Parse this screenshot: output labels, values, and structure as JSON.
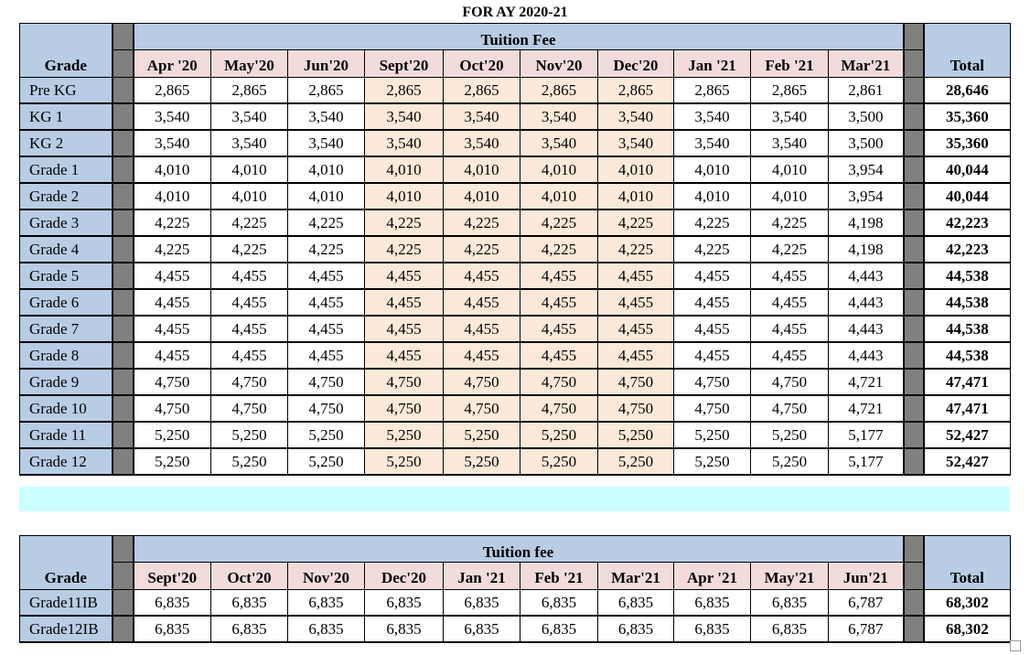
{
  "title": "FOR AY 2020-21",
  "colors": {
    "header_blue": "#b8cce4",
    "month_pink": "#f2dcdb",
    "highlight_peach": "#fde9d9",
    "separator_grey": "#808080",
    "band_cyan": "#ccffff"
  },
  "table1": {
    "grade_header": "Grade",
    "group_header": "Tuition Fee",
    "total_header": "Total",
    "months": [
      "Apr '20",
      "May'20",
      "Jun'20",
      "Sept'20",
      "Oct'20",
      "Nov'20",
      "Dec'20",
      "Jan '21",
      "Feb '21",
      "Mar'21"
    ],
    "highlighted_months": [
      "Sept'20",
      "Oct'20",
      "Nov'20",
      "Dec'20"
    ],
    "rows": [
      {
        "grade": "Pre KG",
        "values": [
          "2,865",
          "2,865",
          "2,865",
          "2,865",
          "2,865",
          "2,865",
          "2,865",
          "2,865",
          "2,865",
          "2,861"
        ],
        "total": "28,646"
      },
      {
        "grade": "KG 1",
        "values": [
          "3,540",
          "3,540",
          "3,540",
          "3,540",
          "3,540",
          "3,540",
          "3,540",
          "3,540",
          "3,540",
          "3,500"
        ],
        "total": "35,360"
      },
      {
        "grade": "KG 2",
        "values": [
          "3,540",
          "3,540",
          "3,540",
          "3,540",
          "3,540",
          "3,540",
          "3,540",
          "3,540",
          "3,540",
          "3,500"
        ],
        "total": "35,360"
      },
      {
        "grade": "Grade 1",
        "values": [
          "4,010",
          "4,010",
          "4,010",
          "4,010",
          "4,010",
          "4,010",
          "4,010",
          "4,010",
          "4,010",
          "3,954"
        ],
        "total": "40,044"
      },
      {
        "grade": "Grade 2",
        "values": [
          "4,010",
          "4,010",
          "4,010",
          "4,010",
          "4,010",
          "4,010",
          "4,010",
          "4,010",
          "4,010",
          "3,954"
        ],
        "total": "40,044"
      },
      {
        "grade": "Grade 3",
        "values": [
          "4,225",
          "4,225",
          "4,225",
          "4,225",
          "4,225",
          "4,225",
          "4,225",
          "4,225",
          "4,225",
          "4,198"
        ],
        "total": "42,223"
      },
      {
        "grade": "Grade 4",
        "values": [
          "4,225",
          "4,225",
          "4,225",
          "4,225",
          "4,225",
          "4,225",
          "4,225",
          "4,225",
          "4,225",
          "4,198"
        ],
        "total": "42,223"
      },
      {
        "grade": "Grade 5",
        "values": [
          "4,455",
          "4,455",
          "4,455",
          "4,455",
          "4,455",
          "4,455",
          "4,455",
          "4,455",
          "4,455",
          "4,443"
        ],
        "total": "44,538"
      },
      {
        "grade": "Grade 6",
        "values": [
          "4,455",
          "4,455",
          "4,455",
          "4,455",
          "4,455",
          "4,455",
          "4,455",
          "4,455",
          "4,455",
          "4,443"
        ],
        "total": "44,538"
      },
      {
        "grade": "Grade 7",
        "values": [
          "4,455",
          "4,455",
          "4,455",
          "4,455",
          "4,455",
          "4,455",
          "4,455",
          "4,455",
          "4,455",
          "4,443"
        ],
        "total": "44,538"
      },
      {
        "grade": "Grade 8",
        "values": [
          "4,455",
          "4,455",
          "4,455",
          "4,455",
          "4,455",
          "4,455",
          "4,455",
          "4,455",
          "4,455",
          "4,443"
        ],
        "total": "44,538"
      },
      {
        "grade": "Grade 9",
        "values": [
          "4,750",
          "4,750",
          "4,750",
          "4,750",
          "4,750",
          "4,750",
          "4,750",
          "4,750",
          "4,750",
          "4,721"
        ],
        "total": "47,471"
      },
      {
        "grade": "Grade 10",
        "values": [
          "4,750",
          "4,750",
          "4,750",
          "4,750",
          "4,750",
          "4,750",
          "4,750",
          "4,750",
          "4,750",
          "4,721"
        ],
        "total": "47,471"
      },
      {
        "grade": "Grade 11",
        "values": [
          "5,250",
          "5,250",
          "5,250",
          "5,250",
          "5,250",
          "5,250",
          "5,250",
          "5,250",
          "5,250",
          "5,177"
        ],
        "total": "52,427"
      },
      {
        "grade": "Grade 12",
        "values": [
          "5,250",
          "5,250",
          "5,250",
          "5,250",
          "5,250",
          "5,250",
          "5,250",
          "5,250",
          "5,250",
          "5,177"
        ],
        "total": "52,427"
      }
    ]
  },
  "table2": {
    "grade_header": "Grade",
    "group_header": "Tuition fee",
    "total_header": "Total",
    "months": [
      "Sept'20",
      "Oct'20",
      "Nov'20",
      "Dec'20",
      "Jan '21",
      "Feb '21",
      "Mar'21",
      "Apr '21",
      "May'21",
      "Jun'21"
    ],
    "rows": [
      {
        "grade": "Grade11IB",
        "values": [
          "6,835",
          "6,835",
          "6,835",
          "6,835",
          "6,835",
          "6,835",
          "6,835",
          "6,835",
          "6,835",
          "6,787"
        ],
        "total": "68,302"
      },
      {
        "grade": "Grade12IB",
        "values": [
          "6,835",
          "6,835",
          "6,835",
          "6,835",
          "6,835",
          "6,835",
          "6,835",
          "6,835",
          "6,835",
          "6,787"
        ],
        "total": "68,302"
      }
    ]
  }
}
